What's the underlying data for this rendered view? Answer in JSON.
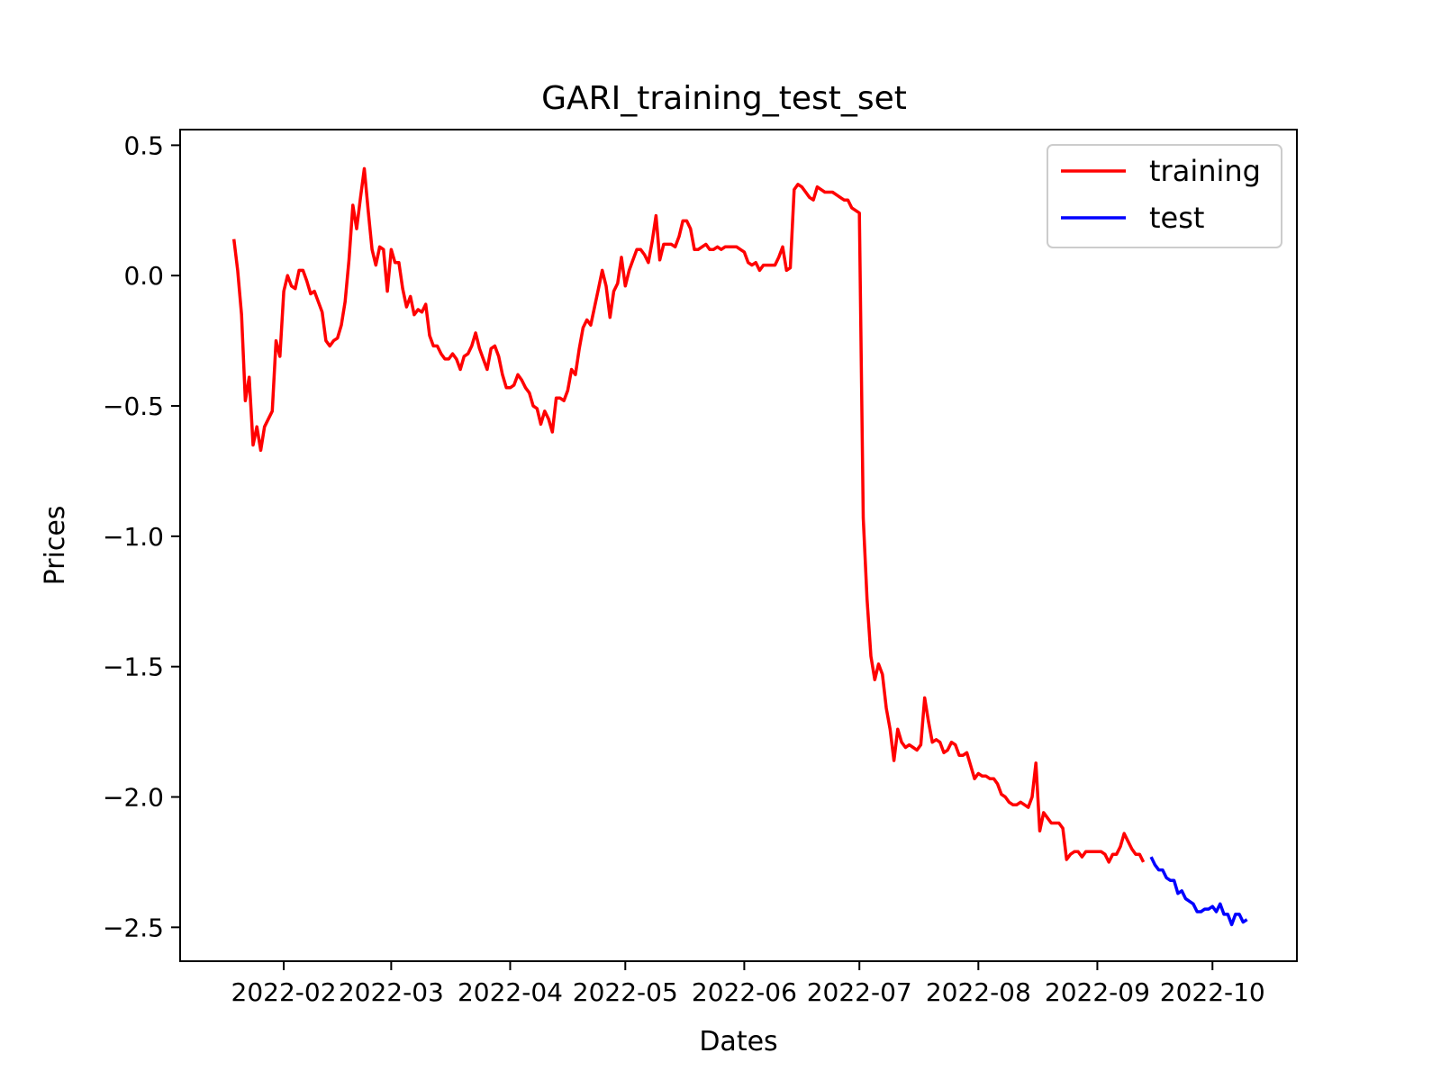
{
  "chart_data": {
    "type": "line",
    "title": "GARI_training_test_set",
    "xlabel": "Dates",
    "ylabel": "Prices",
    "x_ticks": [
      "2022-02",
      "2022-03",
      "2022-04",
      "2022-05",
      "2022-06",
      "2022-07",
      "2022-08",
      "2022-09",
      "2022-10"
    ],
    "x_tick_dates": [
      "2022-02-01",
      "2022-03-01",
      "2022-04-01",
      "2022-05-01",
      "2022-06-01",
      "2022-07-01",
      "2022-08-01",
      "2022-09-01",
      "2022-10-01"
    ],
    "xlim": [
      "2022-01-05",
      "2022-10-23"
    ],
    "y_ticks": [
      "0.5",
      "0.0",
      "−0.5",
      "−1.0",
      "−1.5",
      "−2.0",
      "−2.5"
    ],
    "y_tick_values": [
      0.5,
      0.0,
      -0.5,
      -1.0,
      -1.5,
      -2.0,
      -2.5
    ],
    "ylim": [
      -2.63,
      0.56
    ],
    "grid": false,
    "legend_position": "top-right",
    "series": [
      {
        "name": "training",
        "color": "#ff0000",
        "points": [
          [
            "2022-01-19",
            0.14
          ],
          [
            "2022-01-20",
            0.02
          ],
          [
            "2022-01-21",
            -0.15
          ],
          [
            "2022-01-22",
            -0.48
          ],
          [
            "2022-01-23",
            -0.39
          ],
          [
            "2022-01-24",
            -0.65
          ],
          [
            "2022-01-25",
            -0.58
          ],
          [
            "2022-01-26",
            -0.67
          ],
          [
            "2022-01-27",
            -0.58
          ],
          [
            "2022-01-29",
            -0.52
          ],
          [
            "2022-01-30",
            -0.25
          ],
          [
            "2022-01-31",
            -0.31
          ],
          [
            "2022-02-01",
            -0.06
          ],
          [
            "2022-02-02",
            0.0
          ],
          [
            "2022-02-03",
            -0.04
          ],
          [
            "2022-02-04",
            -0.05
          ],
          [
            "2022-02-05",
            0.02
          ],
          [
            "2022-02-06",
            0.02
          ],
          [
            "2022-02-07",
            -0.02
          ],
          [
            "2022-02-08",
            -0.07
          ],
          [
            "2022-02-09",
            -0.06
          ],
          [
            "2022-02-10",
            -0.1
          ],
          [
            "2022-02-11",
            -0.14
          ],
          [
            "2022-02-12",
            -0.25
          ],
          [
            "2022-02-13",
            -0.27
          ],
          [
            "2022-02-14",
            -0.25
          ],
          [
            "2022-02-15",
            -0.24
          ],
          [
            "2022-02-16",
            -0.19
          ],
          [
            "2022-02-17",
            -0.1
          ],
          [
            "2022-02-18",
            0.06
          ],
          [
            "2022-02-19",
            0.27
          ],
          [
            "2022-02-20",
            0.18
          ],
          [
            "2022-02-21",
            0.3
          ],
          [
            "2022-02-22",
            0.41
          ],
          [
            "2022-02-23",
            0.25
          ],
          [
            "2022-02-24",
            0.1
          ],
          [
            "2022-02-25",
            0.04
          ],
          [
            "2022-02-26",
            0.11
          ],
          [
            "2022-02-27",
            0.1
          ],
          [
            "2022-02-28",
            -0.06
          ],
          [
            "2022-03-01",
            0.1
          ],
          [
            "2022-03-02",
            0.05
          ],
          [
            "2022-03-03",
            0.05
          ],
          [
            "2022-03-04",
            -0.05
          ],
          [
            "2022-03-05",
            -0.12
          ],
          [
            "2022-03-06",
            -0.08
          ],
          [
            "2022-03-07",
            -0.15
          ],
          [
            "2022-03-08",
            -0.13
          ],
          [
            "2022-03-09",
            -0.14
          ],
          [
            "2022-03-10",
            -0.11
          ],
          [
            "2022-03-11",
            -0.23
          ],
          [
            "2022-03-12",
            -0.27
          ],
          [
            "2022-03-13",
            -0.27
          ],
          [
            "2022-03-14",
            -0.3
          ],
          [
            "2022-03-15",
            -0.32
          ],
          [
            "2022-03-16",
            -0.32
          ],
          [
            "2022-03-17",
            -0.3
          ],
          [
            "2022-03-18",
            -0.32
          ],
          [
            "2022-03-19",
            -0.36
          ],
          [
            "2022-03-20",
            -0.31
          ],
          [
            "2022-03-21",
            -0.3
          ],
          [
            "2022-03-22",
            -0.27
          ],
          [
            "2022-03-23",
            -0.22
          ],
          [
            "2022-03-24",
            -0.28
          ],
          [
            "2022-03-25",
            -0.32
          ],
          [
            "2022-03-26",
            -0.36
          ],
          [
            "2022-03-27",
            -0.28
          ],
          [
            "2022-03-28",
            -0.27
          ],
          [
            "2022-03-29",
            -0.31
          ],
          [
            "2022-03-30",
            -0.38
          ],
          [
            "2022-03-31",
            -0.43
          ],
          [
            "2022-04-01",
            -0.43
          ],
          [
            "2022-04-02",
            -0.42
          ],
          [
            "2022-04-03",
            -0.38
          ],
          [
            "2022-04-04",
            -0.4
          ],
          [
            "2022-04-05",
            -0.43
          ],
          [
            "2022-04-06",
            -0.45
          ],
          [
            "2022-04-07",
            -0.5
          ],
          [
            "2022-04-08",
            -0.51
          ],
          [
            "2022-04-09",
            -0.57
          ],
          [
            "2022-04-10",
            -0.52
          ],
          [
            "2022-04-11",
            -0.55
          ],
          [
            "2022-04-12",
            -0.6
          ],
          [
            "2022-04-13",
            -0.47
          ],
          [
            "2022-04-14",
            -0.47
          ],
          [
            "2022-04-15",
            -0.48
          ],
          [
            "2022-04-16",
            -0.44
          ],
          [
            "2022-04-17",
            -0.36
          ],
          [
            "2022-04-18",
            -0.38
          ],
          [
            "2022-04-19",
            -0.28
          ],
          [
            "2022-04-20",
            -0.2
          ],
          [
            "2022-04-21",
            -0.17
          ],
          [
            "2022-04-22",
            -0.19
          ],
          [
            "2022-04-23",
            -0.12
          ],
          [
            "2022-04-24",
            -0.05
          ],
          [
            "2022-04-25",
            0.02
          ],
          [
            "2022-04-26",
            -0.04
          ],
          [
            "2022-04-27",
            -0.16
          ],
          [
            "2022-04-28",
            -0.06
          ],
          [
            "2022-04-29",
            -0.03
          ],
          [
            "2022-04-30",
            0.07
          ],
          [
            "2022-05-01",
            -0.04
          ],
          [
            "2022-05-02",
            0.02
          ],
          [
            "2022-05-03",
            0.06
          ],
          [
            "2022-05-04",
            0.1
          ],
          [
            "2022-05-05",
            0.1
          ],
          [
            "2022-05-06",
            0.08
          ],
          [
            "2022-05-07",
            0.05
          ],
          [
            "2022-05-08",
            0.13
          ],
          [
            "2022-05-09",
            0.23
          ],
          [
            "2022-05-10",
            0.06
          ],
          [
            "2022-05-11",
            0.12
          ],
          [
            "2022-05-12",
            0.12
          ],
          [
            "2022-05-13",
            0.12
          ],
          [
            "2022-05-14",
            0.11
          ],
          [
            "2022-05-15",
            0.15
          ],
          [
            "2022-05-16",
            0.21
          ],
          [
            "2022-05-17",
            0.21
          ],
          [
            "2022-05-18",
            0.18
          ],
          [
            "2022-05-19",
            0.1
          ],
          [
            "2022-05-20",
            0.1
          ],
          [
            "2022-05-21",
            0.11
          ],
          [
            "2022-05-22",
            0.12
          ],
          [
            "2022-05-23",
            0.1
          ],
          [
            "2022-05-24",
            0.1
          ],
          [
            "2022-05-25",
            0.11
          ],
          [
            "2022-05-26",
            0.1
          ],
          [
            "2022-05-27",
            0.11
          ],
          [
            "2022-05-28",
            0.11
          ],
          [
            "2022-05-29",
            0.11
          ],
          [
            "2022-05-30",
            0.11
          ],
          [
            "2022-05-31",
            0.1
          ],
          [
            "2022-06-01",
            0.09
          ],
          [
            "2022-06-02",
            0.05
          ],
          [
            "2022-06-03",
            0.04
          ],
          [
            "2022-06-04",
            0.05
          ],
          [
            "2022-06-05",
            0.02
          ],
          [
            "2022-06-06",
            0.04
          ],
          [
            "2022-06-07",
            0.04
          ],
          [
            "2022-06-08",
            0.04
          ],
          [
            "2022-06-09",
            0.04
          ],
          [
            "2022-06-10",
            0.07
          ],
          [
            "2022-06-11",
            0.11
          ],
          [
            "2022-06-12",
            0.02
          ],
          [
            "2022-06-13",
            0.03
          ],
          [
            "2022-06-14",
            0.33
          ],
          [
            "2022-06-15",
            0.35
          ],
          [
            "2022-06-16",
            0.34
          ],
          [
            "2022-06-17",
            0.32
          ],
          [
            "2022-06-18",
            0.3
          ],
          [
            "2022-06-19",
            0.29
          ],
          [
            "2022-06-20",
            0.34
          ],
          [
            "2022-06-21",
            0.33
          ],
          [
            "2022-06-22",
            0.32
          ],
          [
            "2022-06-23",
            0.32
          ],
          [
            "2022-06-24",
            0.32
          ],
          [
            "2022-06-25",
            0.31
          ],
          [
            "2022-06-26",
            0.3
          ],
          [
            "2022-06-27",
            0.29
          ],
          [
            "2022-06-28",
            0.29
          ],
          [
            "2022-06-29",
            0.26
          ],
          [
            "2022-06-30",
            0.25
          ],
          [
            "2022-07-01",
            0.24
          ],
          [
            "2022-07-02",
            -0.93
          ],
          [
            "2022-07-03",
            -1.24
          ],
          [
            "2022-07-04",
            -1.46
          ],
          [
            "2022-07-05",
            -1.55
          ],
          [
            "2022-07-06",
            -1.49
          ],
          [
            "2022-07-07",
            -1.53
          ],
          [
            "2022-07-08",
            -1.66
          ],
          [
            "2022-07-09",
            -1.74
          ],
          [
            "2022-07-10",
            -1.86
          ],
          [
            "2022-07-11",
            -1.74
          ],
          [
            "2022-07-12",
            -1.79
          ],
          [
            "2022-07-13",
            -1.81
          ],
          [
            "2022-07-14",
            -1.8
          ],
          [
            "2022-07-15",
            -1.81
          ],
          [
            "2022-07-16",
            -1.82
          ],
          [
            "2022-07-17",
            -1.8
          ],
          [
            "2022-07-18",
            -1.62
          ],
          [
            "2022-07-19",
            -1.71
          ],
          [
            "2022-07-20",
            -1.79
          ],
          [
            "2022-07-21",
            -1.78
          ],
          [
            "2022-07-22",
            -1.79
          ],
          [
            "2022-07-23",
            -1.83
          ],
          [
            "2022-07-24",
            -1.82
          ],
          [
            "2022-07-25",
            -1.79
          ],
          [
            "2022-07-26",
            -1.8
          ],
          [
            "2022-07-27",
            -1.84
          ],
          [
            "2022-07-28",
            -1.84
          ],
          [
            "2022-07-29",
            -1.83
          ],
          [
            "2022-07-30",
            -1.88
          ],
          [
            "2022-07-31",
            -1.93
          ],
          [
            "2022-08-01",
            -1.91
          ],
          [
            "2022-08-02",
            -1.92
          ],
          [
            "2022-08-03",
            -1.92
          ],
          [
            "2022-08-04",
            -1.93
          ],
          [
            "2022-08-05",
            -1.93
          ],
          [
            "2022-08-06",
            -1.95
          ],
          [
            "2022-08-07",
            -1.99
          ],
          [
            "2022-08-08",
            -2.0
          ],
          [
            "2022-08-09",
            -2.02
          ],
          [
            "2022-08-10",
            -2.03
          ],
          [
            "2022-08-11",
            -2.03
          ],
          [
            "2022-08-12",
            -2.02
          ],
          [
            "2022-08-13",
            -2.03
          ],
          [
            "2022-08-14",
            -2.04
          ],
          [
            "2022-08-15",
            -2.0
          ],
          [
            "2022-08-16",
            -1.87
          ],
          [
            "2022-08-17",
            -2.13
          ],
          [
            "2022-08-18",
            -2.06
          ],
          [
            "2022-08-19",
            -2.08
          ],
          [
            "2022-08-20",
            -2.1
          ],
          [
            "2022-08-21",
            -2.1
          ],
          [
            "2022-08-22",
            -2.1
          ],
          [
            "2022-08-23",
            -2.12
          ],
          [
            "2022-08-24",
            -2.24
          ],
          [
            "2022-08-25",
            -2.22
          ],
          [
            "2022-08-26",
            -2.21
          ],
          [
            "2022-08-27",
            -2.21
          ],
          [
            "2022-08-28",
            -2.23
          ],
          [
            "2022-08-29",
            -2.21
          ],
          [
            "2022-08-30",
            -2.21
          ],
          [
            "2022-08-31",
            -2.21
          ],
          [
            "2022-09-01",
            -2.21
          ],
          [
            "2022-09-02",
            -2.21
          ],
          [
            "2022-09-03",
            -2.22
          ],
          [
            "2022-09-04",
            -2.25
          ],
          [
            "2022-09-05",
            -2.22
          ],
          [
            "2022-09-06",
            -2.22
          ],
          [
            "2022-09-07",
            -2.19
          ],
          [
            "2022-09-08",
            -2.14
          ],
          [
            "2022-09-09",
            -2.17
          ],
          [
            "2022-09-10",
            -2.2
          ],
          [
            "2022-09-11",
            -2.22
          ],
          [
            "2022-09-12",
            -2.22
          ],
          [
            "2022-09-13",
            -2.25
          ]
        ]
      },
      {
        "name": "test",
        "color": "#0000ff",
        "points": [
          [
            "2022-09-15",
            -2.23
          ],
          [
            "2022-09-16",
            -2.26
          ],
          [
            "2022-09-17",
            -2.28
          ],
          [
            "2022-09-18",
            -2.28
          ],
          [
            "2022-09-19",
            -2.31
          ],
          [
            "2022-09-20",
            -2.32
          ],
          [
            "2022-09-21",
            -2.32
          ],
          [
            "2022-09-22",
            -2.37
          ],
          [
            "2022-09-23",
            -2.36
          ],
          [
            "2022-09-24",
            -2.39
          ],
          [
            "2022-09-25",
            -2.4
          ],
          [
            "2022-09-26",
            -2.41
          ],
          [
            "2022-09-27",
            -2.44
          ],
          [
            "2022-09-28",
            -2.44
          ],
          [
            "2022-09-29",
            -2.43
          ],
          [
            "2022-09-30",
            -2.43
          ],
          [
            "2022-10-01",
            -2.42
          ],
          [
            "2022-10-02",
            -2.44
          ],
          [
            "2022-10-03",
            -2.41
          ],
          [
            "2022-10-04",
            -2.45
          ],
          [
            "2022-10-05",
            -2.45
          ],
          [
            "2022-10-06",
            -2.49
          ],
          [
            "2022-10-07",
            -2.45
          ],
          [
            "2022-10-08",
            -2.45
          ],
          [
            "2022-10-09",
            -2.48
          ],
          [
            "2022-10-10",
            -2.47
          ]
        ]
      }
    ]
  }
}
